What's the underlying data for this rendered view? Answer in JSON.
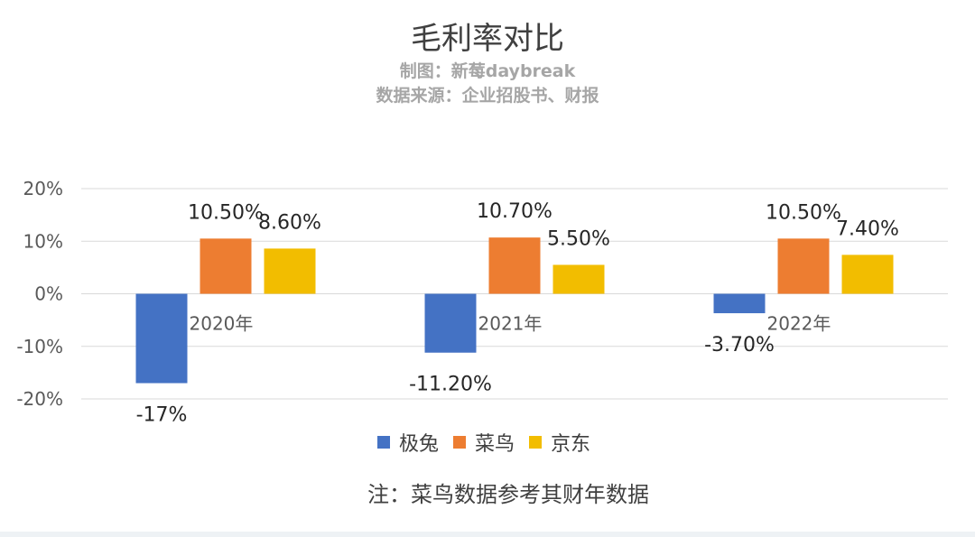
{
  "chart_data": {
    "type": "bar",
    "title": "毛利率对比",
    "subtitle_lines": [
      "制图：新莓daybreak",
      "数据来源：企业招股书、财报"
    ],
    "categories": [
      "2020年",
      "2021年",
      "2022年"
    ],
    "series": [
      {
        "name": "极兔",
        "color": "#4472c4",
        "values": [
          -17,
          -11.2,
          -3.7
        ],
        "labels": [
          "-17%",
          "-11.20%",
          "-3.70%"
        ]
      },
      {
        "name": "菜鸟",
        "color": "#ed7d31",
        "values": [
          10.5,
          10.7,
          10.5
        ],
        "labels": [
          "10.50%",
          "10.70%",
          "10.50%"
        ]
      },
      {
        "name": "京东",
        "color": "#f2bd00",
        "values": [
          8.6,
          5.5,
          7.4
        ],
        "labels": [
          "8.60%",
          "5.50%",
          "7.40%"
        ]
      }
    ],
    "ylim": [
      -20,
      20
    ],
    "yticks": [
      20,
      10,
      0,
      -10,
      -20
    ],
    "ytick_labels": [
      "20%",
      "10%",
      "0%",
      "-10%",
      "-20%"
    ],
    "grid": true,
    "legend_position": "bottom",
    "note": "注：菜鸟数据参考其财年数据"
  }
}
